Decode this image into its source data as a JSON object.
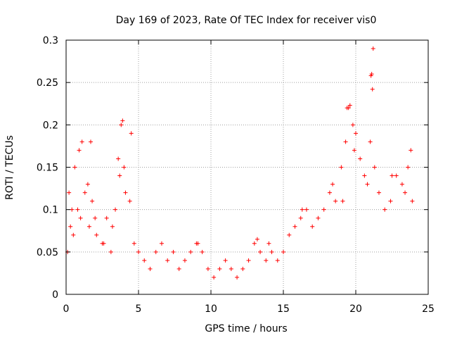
{
  "chart_data": {
    "type": "scatter",
    "title": "Day 169 of 2023, Rate Of TEC Index for receiver vis0",
    "xlabel": "GPS time / hours",
    "ylabel": "ROTI / TECUs",
    "xlim": [
      0,
      25
    ],
    "ylim": [
      0,
      0.3
    ],
    "xticks": [
      0,
      5,
      10,
      15,
      20,
      25
    ],
    "xtick_labels": [
      "0",
      "5",
      "10",
      "15",
      "20",
      "25"
    ],
    "yticks": [
      0,
      0.05,
      0.1,
      0.15,
      0.2,
      0.25,
      0.3
    ],
    "ytick_labels": [
      "0",
      "0.05",
      "0.1",
      "0.15",
      "0.2",
      "0.25",
      "0.3"
    ],
    "grid": true,
    "marker": "+",
    "color": "#ff0000",
    "series": [
      {
        "name": "ROTI",
        "x": [
          0.1,
          0.3,
          0.5,
          0.8,
          1.0,
          1.3,
          1.6,
          1.8,
          2.1,
          2.5,
          2.8,
          3.1,
          3.4,
          3.7,
          3.8,
          4.1,
          4.4,
          4.7,
          5.0,
          5.4,
          5.8,
          6.2,
          6.6,
          7.0,
          7.4,
          7.8,
          8.2,
          8.6,
          9.0,
          9.4,
          9.8,
          10.2,
          10.6,
          11.0,
          11.4,
          11.8,
          12.2,
          12.6,
          13.0,
          13.4,
          13.8,
          14.2,
          14.6,
          15.0,
          15.4,
          15.8,
          16.2,
          16.6,
          17.0,
          17.4,
          17.8,
          18.2,
          18.6,
          19.0,
          19.3,
          19.5,
          19.8,
          20.0,
          20.3,
          20.6,
          21.0,
          21.1,
          21.3,
          21.6,
          22.0,
          22.4,
          22.8,
          23.2,
          23.6,
          23.9,
          0.2,
          0.6,
          0.9,
          1.1,
          1.5,
          2.0,
          2.6,
          3.2,
          3.6,
          4.0,
          4.5,
          9.1,
          13.2,
          14.0,
          16.3,
          18.4,
          19.1,
          19.4,
          19.9,
          20.8,
          21.2,
          22.5,
          23.4,
          23.8,
          0.4,
          1.7,
          3.9,
          19.6,
          21.15,
          21.05
        ],
        "y": [
          0.05,
          0.08,
          0.07,
          0.1,
          0.09,
          0.12,
          0.08,
          0.11,
          0.07,
          0.06,
          0.09,
          0.05,
          0.1,
          0.14,
          0.2,
          0.12,
          0.11,
          0.06,
          0.05,
          0.04,
          0.03,
          0.05,
          0.06,
          0.04,
          0.05,
          0.03,
          0.04,
          0.05,
          0.06,
          0.05,
          0.03,
          0.02,
          0.03,
          0.04,
          0.03,
          0.02,
          0.03,
          0.04,
          0.06,
          0.05,
          0.04,
          0.05,
          0.04,
          0.05,
          0.07,
          0.08,
          0.09,
          0.1,
          0.08,
          0.09,
          0.1,
          0.12,
          0.11,
          0.15,
          0.18,
          0.22,
          0.2,
          0.19,
          0.16,
          0.14,
          0.18,
          0.26,
          0.15,
          0.12,
          0.1,
          0.11,
          0.14,
          0.13,
          0.15,
          0.11,
          0.12,
          0.15,
          0.17,
          0.18,
          0.13,
          0.09,
          0.06,
          0.08,
          0.16,
          0.15,
          0.19,
          0.06,
          0.065,
          0.06,
          0.1,
          0.13,
          0.11,
          0.22,
          0.17,
          0.13,
          0.29,
          0.14,
          0.12,
          0.17,
          0.1,
          0.18,
          0.205,
          0.223,
          0.242,
          0.258
        ]
      }
    ]
  }
}
